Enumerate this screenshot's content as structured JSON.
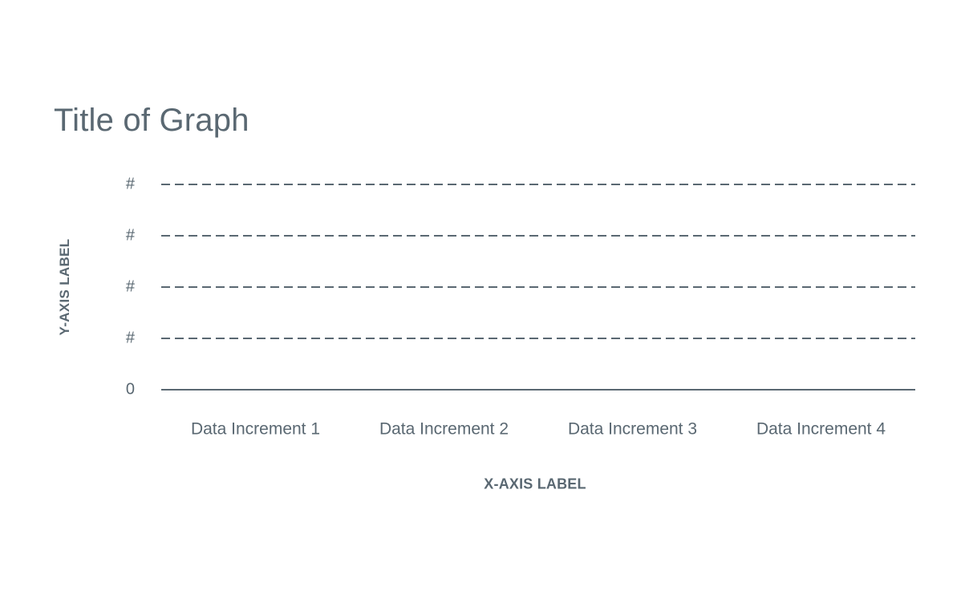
{
  "chart_data": {
    "type": "bar",
    "title": "Title of Graph",
    "xlabel": "X-AXIS LABEL",
    "ylabel": "Y-AXIS LABEL",
    "categories": [
      "Data Increment 1",
      "Data Increment 2",
      "Data Increment 3",
      "Data Increment 4"
    ],
    "y_ticks": [
      "0",
      "#",
      "#",
      "#",
      "#"
    ],
    "series": [],
    "grid": "dashed horizontal",
    "legend": "none",
    "colors": {
      "text": "#5a6872",
      "gridline": "#5a6872",
      "axis": "#5a6872"
    }
  }
}
